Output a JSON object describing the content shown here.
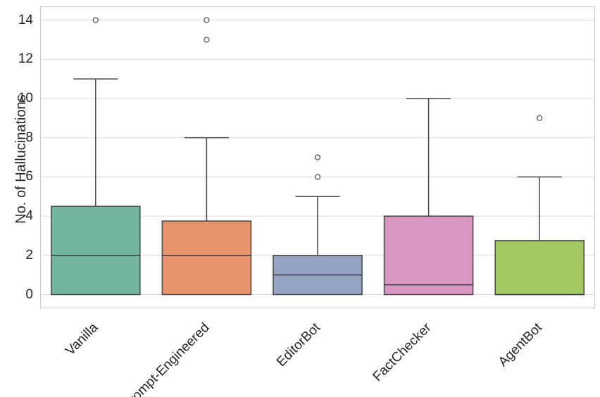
{
  "chart_data": {
    "type": "box",
    "title": "",
    "xlabel": "",
    "ylabel": "No. of Hallucinations",
    "ylim": [
      -0.7,
      14.7
    ],
    "yticks": [
      0,
      2,
      4,
      6,
      8,
      10,
      12,
      14
    ],
    "grid": true,
    "legend": "none",
    "categories": [
      "Vanilla",
      "Prompt-Engineered",
      "EditorBot",
      "FactChecker",
      "AgentBot"
    ],
    "series": [
      {
        "name": "Vanilla",
        "color": "#74b5a2",
        "q1": 0,
        "median": 2,
        "q3": 4.5,
        "whisker_low": 0,
        "whisker_high": 11,
        "outliers": [
          14
        ]
      },
      {
        "name": "Prompt-Engineered",
        "color": "#e8946f",
        "q1": 0,
        "median": 2,
        "q3": 3.75,
        "whisker_low": 0,
        "whisker_high": 8,
        "outliers": [
          13,
          14
        ]
      },
      {
        "name": "EditorBot",
        "color": "#95a3c4",
        "q1": 0,
        "median": 1,
        "q3": 2,
        "whisker_low": 0,
        "whisker_high": 5,
        "outliers": [
          6,
          7
        ]
      },
      {
        "name": "FactChecker",
        "color": "#d996c1",
        "q1": 0,
        "median": 0.5,
        "q3": 4,
        "whisker_low": 0,
        "whisker_high": 10,
        "outliers": []
      },
      {
        "name": "AgentBot",
        "color": "#a3c863",
        "q1": 0,
        "median": 0,
        "q3": 2.75,
        "whisker_low": 0,
        "whisker_high": 6,
        "outliers": [
          9
        ]
      }
    ],
    "theme": {
      "box_edge_color": "#464646",
      "whisker_color": "#464646",
      "median_color": "#3d3d3d",
      "outlier_edge_color": "#4d4d4d",
      "outlier_fill_color": "#ffffff",
      "grid_color": "#dcdcdc",
      "spine_color": "#cacaca",
      "text_color": "#262626",
      "background_color": "#ffffff"
    }
  }
}
